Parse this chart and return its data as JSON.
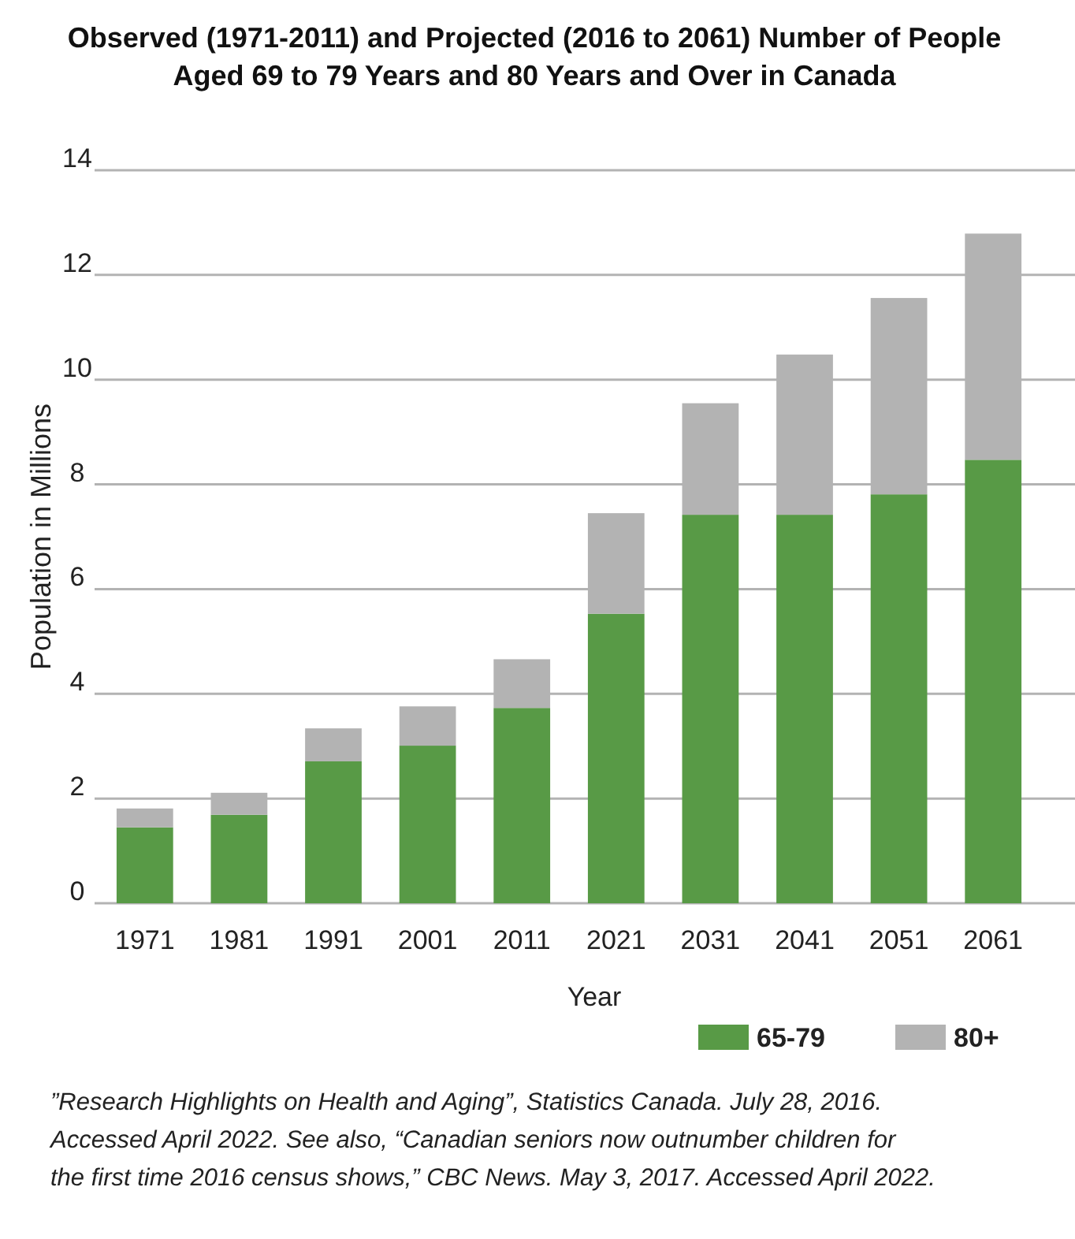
{
  "chart_data": {
    "type": "bar",
    "title": "Observed (1971-2011) and Projected (2016 to 2061) Number of People Aged 69 to 79 Years and 80 Years and Over in Canada",
    "xlabel": "Year",
    "ylabel": "Population in Millions",
    "categories": [
      "1971",
      "1981",
      "1991",
      "2001",
      "2011",
      "2021",
      "2031",
      "2041",
      "2051",
      "2061"
    ],
    "series": [
      {
        "name": "65-79",
        "color": "#589a46",
        "values": [
          1.45,
          1.69,
          2.71,
          3.01,
          3.73,
          5.53,
          7.42,
          7.42,
          7.81,
          8.47
        ]
      },
      {
        "name": "80+",
        "color": "#b3b3b3",
        "values": [
          0.36,
          0.42,
          0.63,
          0.75,
          0.93,
          1.92,
          2.13,
          3.06,
          3.75,
          4.32
        ]
      }
    ],
    "stacked": true,
    "ylim": [
      0,
      14
    ],
    "yticks": [
      0,
      2,
      4,
      6,
      8,
      10,
      12,
      14
    ],
    "grid": "y",
    "legend": "bottom right",
    "annotations": [
      "”Research Highlights on Health and Aging”, Statistics Canada. July 28, 2016. Accessed April 2022. See also, “Canadian seniors now outnumber children for the first time 2016 census shows,” CBC News. May 3, 2017. Accessed April 2022."
    ]
  }
}
